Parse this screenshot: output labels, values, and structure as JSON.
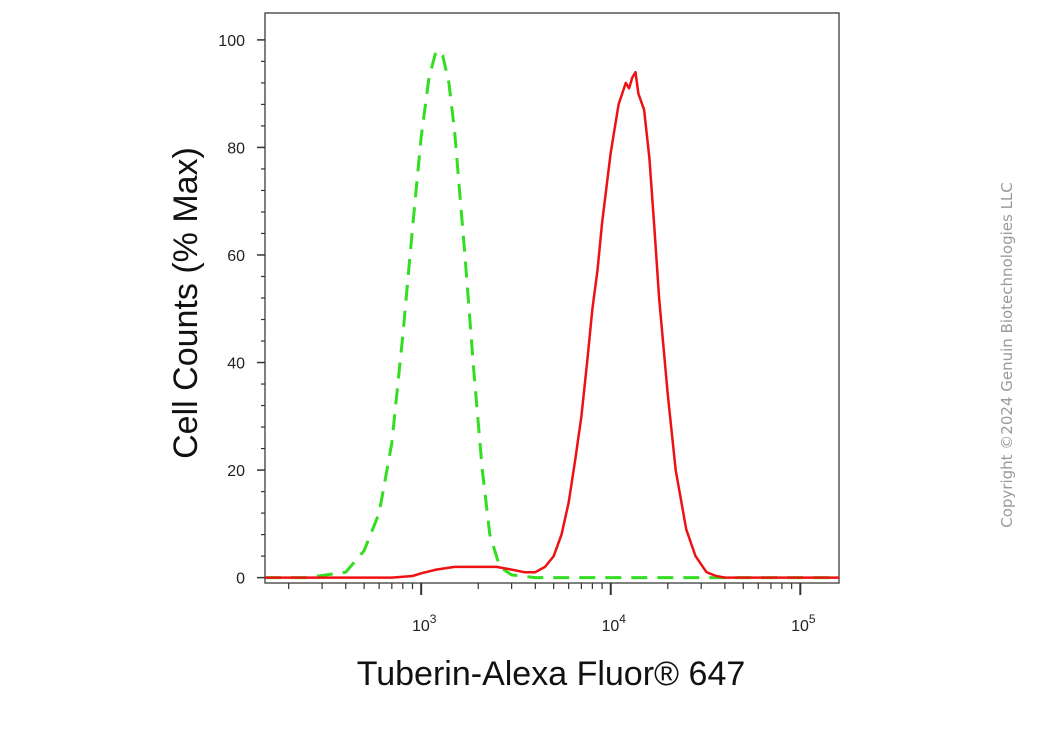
{
  "copyright": "Copyright ©2024 Genuin Biotechnologies LLC",
  "chart_data": {
    "type": "line",
    "title": "",
    "xlabel": "Tuberin-Alexa Fluor® 647",
    "ylabel": "Cell Counts (% Max)",
    "x_scale": "log",
    "xlim": [
      150,
      160000
    ],
    "ylim": [
      -1,
      105
    ],
    "y_ticks": [
      0,
      20,
      40,
      60,
      80,
      100
    ],
    "y_tick_labels": [
      "0",
      "20",
      "40",
      "60",
      "80",
      "100"
    ],
    "x_ticks": [
      1000,
      10000,
      100000
    ],
    "x_tick_labels": [
      {
        "base": "10",
        "exp": "3"
      },
      {
        "base": "10",
        "exp": "4"
      },
      {
        "base": "10",
        "exp": "5"
      }
    ],
    "grid": false,
    "legend": "none",
    "series": [
      {
        "style": "dashed",
        "color": "#33dd22",
        "x": [
          150,
          250,
          400,
          500,
          600,
          700,
          800,
          900,
          1000,
          1100,
          1200,
          1300,
          1400,
          1500,
          1700,
          1900,
          2100,
          2300,
          2600,
          3000,
          4000,
          10000,
          30000,
          160000
        ],
        "y": [
          0,
          0,
          1,
          5,
          12,
          25,
          45,
          65,
          82,
          93,
          98,
          97,
          92,
          83,
          60,
          38,
          20,
          8,
          2,
          0.5,
          0,
          0,
          0,
          0
        ]
      },
      {
        "style": "solid",
        "color": "#ee1111",
        "x": [
          150,
          700,
          900,
          1000,
          1200,
          1500,
          2000,
          2500,
          3000,
          3500,
          4000,
          4500,
          5000,
          5500,
          6000,
          6500,
          7000,
          7500,
          8000,
          8500,
          9000,
          10000,
          11000,
          12000,
          12500,
          13000,
          13500,
          14000,
          15000,
          16000,
          17000,
          18000,
          20000,
          22000,
          25000,
          28000,
          32000,
          36000,
          40000,
          50000,
          160000
        ],
        "y": [
          0,
          0,
          0.3,
          0.8,
          1.5,
          2,
          2,
          2,
          1.5,
          1,
          1,
          2,
          4,
          8,
          14,
          22,
          30,
          40,
          50,
          57,
          66,
          79,
          88,
          92,
          91,
          93,
          94,
          90,
          87,
          78,
          65,
          52,
          34,
          20,
          9,
          4,
          1,
          0.3,
          0,
          0,
          0
        ]
      }
    ]
  }
}
